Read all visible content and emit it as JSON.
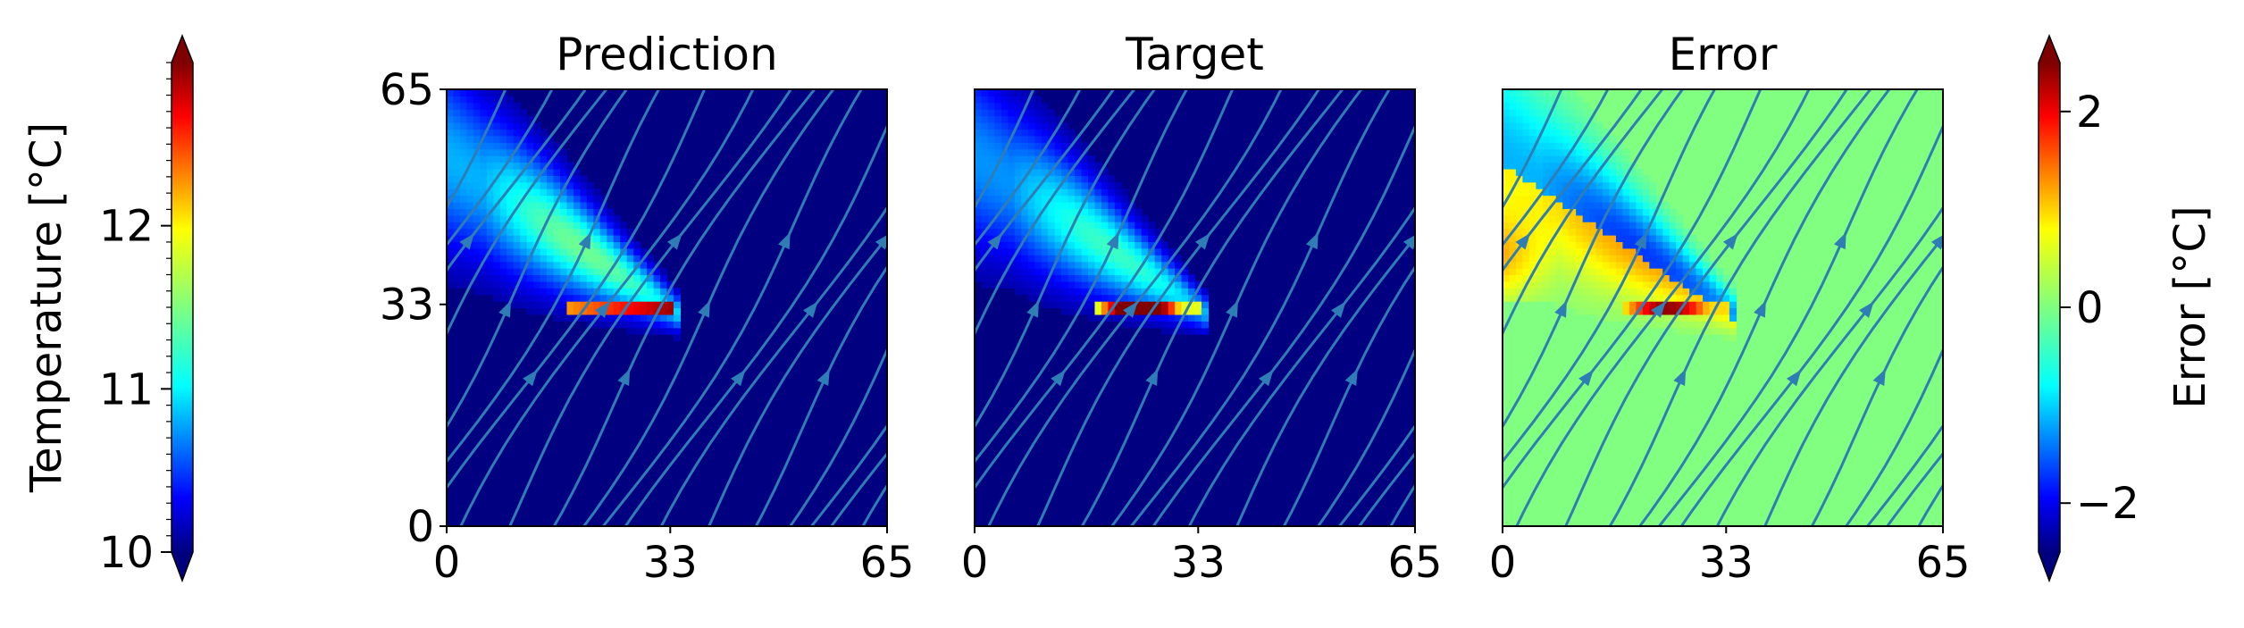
{
  "chart_data": [
    {
      "type": "heatmap",
      "title": "Prediction",
      "x_ticks": [
        "0",
        "33",
        "65"
      ],
      "y_ticks": [
        "0",
        "33",
        "65"
      ],
      "xlim": [
        0,
        65
      ],
      "ylim": [
        0,
        65
      ],
      "overlay": "streamlines",
      "colorbar": "temperature",
      "plume": {
        "stem_y": 32.5,
        "stem_x_end": 33,
        "peak_value": 12.9,
        "background_value": 10.0
      }
    },
    {
      "type": "heatmap",
      "title": "Target",
      "x_ticks": [
        "0",
        "33",
        "65"
      ],
      "y_ticks": [],
      "xlim": [
        0,
        65
      ],
      "ylim": [
        0,
        65
      ],
      "overlay": "streamlines",
      "colorbar": "temperature",
      "plume": {
        "stem_y": 32.5,
        "stem_x_end": 33,
        "peak_value": 13.6,
        "background_value": 10.0
      }
    },
    {
      "type": "heatmap",
      "title": "Error",
      "x_ticks": [
        "0",
        "33",
        "65"
      ],
      "y_ticks": [],
      "xlim": [
        0,
        65
      ],
      "ylim": [
        0,
        65
      ],
      "overlay": "streamlines",
      "colorbar": "error",
      "error_range": [
        -1.6,
        2.4
      ]
    }
  ],
  "colorbars": {
    "temperature": {
      "label": "Temperature [°C]",
      "vmin": 10,
      "vmax": 13,
      "ticks": [
        "10",
        "11",
        "12"
      ],
      "extend": "both",
      "colormap": "jet"
    },
    "error": {
      "label": "Error [°C]",
      "vmin": -2.5,
      "vmax": 2.5,
      "ticks": [
        "−2",
        "0",
        "2"
      ],
      "extend": "both",
      "colormap": "jet"
    }
  },
  "colors": {
    "streamline": "#2f7db5",
    "jet_low": "#00007f",
    "jet_high": "#7f0000"
  }
}
